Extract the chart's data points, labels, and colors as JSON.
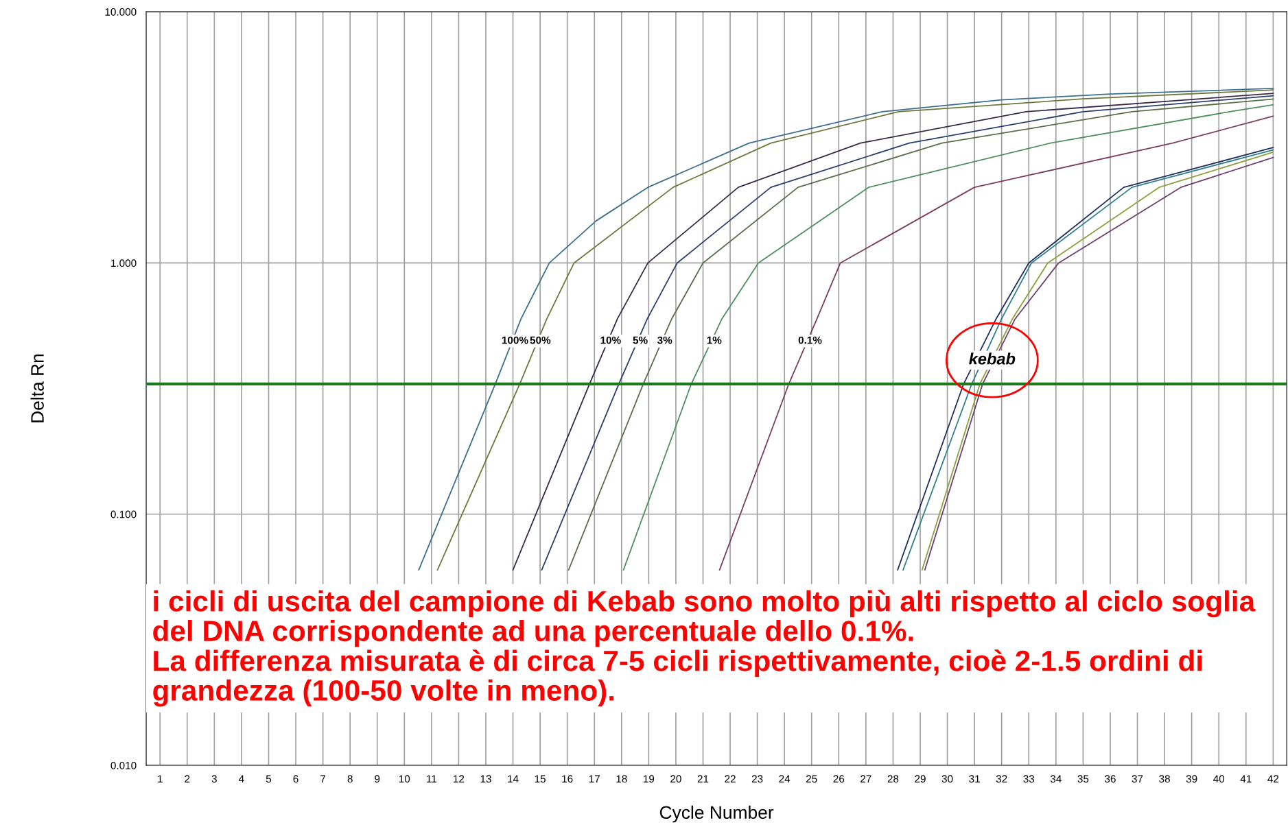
{
  "chart_data": {
    "type": "line",
    "xlabel": "Cycle Number",
    "ylabel": "Delta Rn",
    "log": "y",
    "xlim": [
      0.49,
      42.5
    ],
    "xticks": [
      1,
      2,
      3,
      4,
      5,
      6,
      7,
      8,
      9,
      10,
      11,
      12,
      13,
      14,
      15,
      16,
      17,
      18,
      19,
      20,
      21,
      22,
      23,
      24,
      25,
      26,
      27,
      28,
      29,
      30,
      31,
      32,
      33,
      34,
      35,
      36,
      37,
      38,
      39,
      40,
      41,
      42
    ],
    "ylim": [
      0.01,
      10
    ],
    "yticks": [
      {
        "value": 0.01,
        "label": "0.010"
      },
      {
        "value": 0.1,
        "label": "0.100"
      },
      {
        "value": 1,
        "label": "1.000"
      },
      {
        "value": 10,
        "label": "10.000"
      }
    ],
    "grid": true,
    "marker": "none",
    "line_style": "solid",
    "series": [
      {
        "name": "100%",
        "color": "#3b6e8f",
        "x": [
          10.53,
          13.35,
          14.3,
          15.34,
          17.06,
          18.97,
          22.7,
          27.6,
          32,
          36,
          42
        ],
        "values": [
          0.06,
          0.33,
          0.6,
          1.0,
          1.47,
          2.0,
          3.0,
          4.0,
          4.46,
          4.7,
          4.95
        ]
      },
      {
        "name": "50%",
        "color": "#6b7a3a",
        "x": [
          11.22,
          14.25,
          15.25,
          16.25,
          19.9,
          23.5,
          28.2,
          35,
          42
        ],
        "values": [
          0.06,
          0.33,
          0.6,
          1.0,
          2.0,
          3.0,
          4.0,
          4.5,
          4.88
        ]
      },
      {
        "name": "10%",
        "color": "#3a2a4a",
        "x": [
          14.0,
          16.82,
          17.85,
          18.97,
          22.3,
          26.8,
          32.9,
          42
        ],
        "values": [
          0.06,
          0.33,
          0.6,
          1.0,
          2.0,
          3.0,
          4.0,
          4.73
        ]
      },
      {
        "name": "5%",
        "color": "#2a3f6e",
        "x": [
          15.06,
          17.9,
          18.95,
          20.05,
          23.5,
          28.6,
          35.0,
          42
        ],
        "values": [
          0.06,
          0.33,
          0.6,
          1.0,
          2.0,
          3.0,
          4.0,
          4.63
        ]
      },
      {
        "name": "3%",
        "color": "#5a6e4a",
        "x": [
          16.05,
          18.8,
          19.85,
          21.0,
          24.5,
          29.8,
          36.8,
          42
        ],
        "values": [
          0.06,
          0.33,
          0.6,
          1.0,
          2.0,
          3.0,
          4.0,
          4.49
        ]
      },
      {
        "name": "1%",
        "color": "#4f8f5f",
        "x": [
          18.07,
          20.57,
          21.7,
          23.04,
          27.1,
          33.8,
          40.4,
          42
        ],
        "values": [
          0.06,
          0.33,
          0.6,
          1.0,
          2.0,
          3.0,
          4.0,
          4.26
        ]
      },
      {
        "name": "0.1%",
        "color": "#7a3f5f",
        "x": [
          21.61,
          24.16,
          25.2,
          26.06,
          31.0,
          38.3,
          42
        ],
        "values": [
          0.06,
          0.33,
          0.6,
          1.0,
          2.0,
          3.0,
          3.84
        ]
      },
      {
        "color": "#1f2f5f",
        "x": [
          28.17,
          30.6,
          31.8,
          33.0,
          36.5,
          42
        ],
        "values": [
          0.06,
          0.33,
          0.6,
          1.0,
          2.0,
          2.88
        ]
      },
      {
        "color": "#2f7f8f",
        "x": [
          28.37,
          30.9,
          32.0,
          33.1,
          36.8,
          42
        ],
        "values": [
          0.06,
          0.33,
          0.6,
          1.0,
          2.0,
          2.82
        ]
      },
      {
        "color": "#8f9f3f",
        "x": [
          29.07,
          31.2,
          32.4,
          33.7,
          37.8,
          42
        ],
        "values": [
          0.06,
          0.33,
          0.6,
          1.0,
          2.0,
          2.76
        ]
      },
      {
        "color": "#6f3f6f",
        "x": [
          29.17,
          31.3,
          32.5,
          34.1,
          38.6,
          42
        ],
        "values": [
          0.06,
          0.33,
          0.6,
          1.0,
          2.0,
          2.63
        ]
      }
    ],
    "ref_lines": [
      {
        "axis": "y",
        "value": 0.33,
        "color": "#1e7a1e",
        "line_style": "solid"
      }
    ],
    "annotations": [
      {
        "text": "kebab",
        "x": 31.65,
        "y": 0.41
      },
      "i cicli di uscita del campione di Kebab sono molto più alti rispetto al ciclo soglia\ndel DNA corrispondente ad una percentuale dello 0.1%.\nLa differenza misurata è di circa 7-5 cicli rispettivamente, cioè 2-1.5 ordini di\ngrandezza (100-50 volte in meno)."
    ]
  }
}
